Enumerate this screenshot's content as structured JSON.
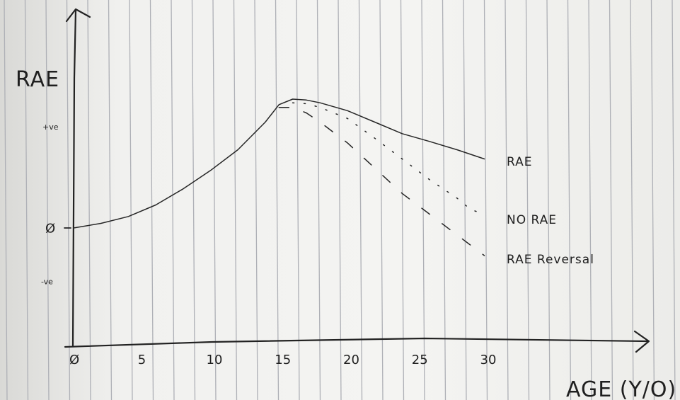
{
  "chart_data": {
    "type": "line",
    "xlabel": "AGE (Y/O)",
    "ylabel": "RAE",
    "x_ticks": [
      "Ø",
      "5",
      "10",
      "15",
      "20",
      "25",
      "30"
    ],
    "y_ticks": [
      "+ve",
      "Ø",
      "-ve"
    ],
    "xlim": [
      0,
      42
    ],
    "ylim": [
      -1.2,
      3.7
    ],
    "grid": false,
    "legend": "right",
    "series": [
      {
        "name": "RAE",
        "style": "solid",
        "x": [
          0,
          2,
          4,
          6,
          8,
          10,
          12,
          14,
          15,
          16,
          17,
          18,
          20,
          22,
          24,
          26,
          28,
          30
        ],
        "y": [
          0.0,
          0.1,
          0.25,
          0.5,
          0.85,
          1.25,
          1.7,
          2.3,
          2.68,
          2.8,
          2.78,
          2.72,
          2.55,
          2.3,
          2.05,
          1.88,
          1.7,
          1.5
        ]
      },
      {
        "name": "NO RAE",
        "style": "dotted",
        "x": [
          16,
          17,
          18,
          20,
          22,
          24,
          26,
          28,
          29,
          30
        ],
        "y": [
          2.72,
          2.7,
          2.62,
          2.38,
          1.95,
          1.5,
          1.05,
          0.65,
          0.4,
          0.3
        ]
      },
      {
        "name": "RAE Reversal",
        "style": "dashed",
        "x": [
          15,
          16,
          17,
          18,
          20,
          22,
          24,
          26,
          28,
          30
        ],
        "y": [
          2.62,
          2.62,
          2.5,
          2.3,
          1.85,
          1.3,
          0.75,
          0.3,
          -0.15,
          -0.6
        ]
      }
    ]
  }
}
